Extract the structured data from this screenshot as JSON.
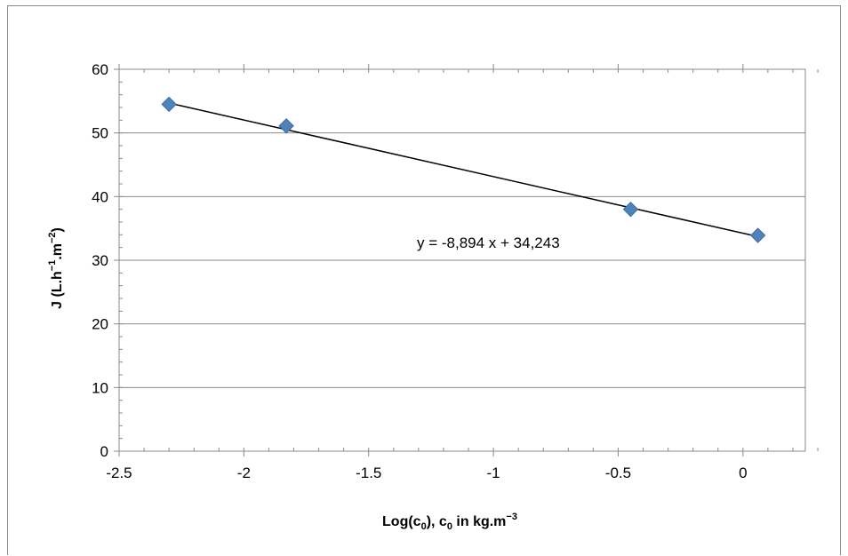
{
  "chart_data": {
    "type": "scatter",
    "title": "",
    "xlabel_parts": {
      "a": "Log(c",
      "a_sub": "0",
      "b": "), c",
      "b_sub": "0",
      "c": " in kg.m",
      "c_sup": "−3"
    },
    "ylabel_parts": {
      "a": "J  (L.h",
      "a_sup": "−1",
      "b": ".m",
      "b_sup": "−2",
      "c": ")"
    },
    "xlim": [
      -2.5,
      0.25
    ],
    "ylim": [
      0,
      60
    ],
    "x_ticks": [
      -2.5,
      -2,
      -1.5,
      -1,
      -0.5,
      0
    ],
    "x_tick_labels": [
      "-2.5",
      "-2",
      "-1.5",
      "-1",
      "-0.5",
      "0"
    ],
    "y_ticks": [
      0,
      10,
      20,
      30,
      40,
      50,
      60
    ],
    "y_tick_labels": [
      "0",
      "10",
      "20",
      "30",
      "40",
      "50",
      "60"
    ],
    "grid": "horizontal",
    "legend": "none",
    "series": [
      {
        "marker": "diamond",
        "color": "#4f81bd",
        "points": [
          {
            "x": -2.3,
            "y": 54.5
          },
          {
            "x": -1.83,
            "y": 51.1
          },
          {
            "x": -0.45,
            "y": 38.0
          },
          {
            "x": 0.06,
            "y": 33.9
          }
        ]
      }
    ],
    "trendline": {
      "type": "linear",
      "slope": -8.894,
      "intercept": 34.243,
      "x_range": [
        -2.3,
        0.06
      ],
      "color": "#000000",
      "equation_label": "y = -8,894 x + 34,243"
    }
  }
}
